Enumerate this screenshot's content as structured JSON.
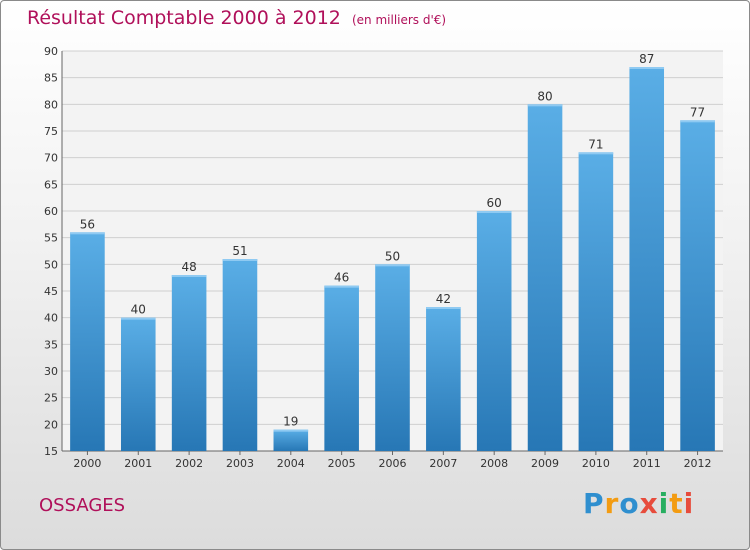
{
  "chart_data": {
    "type": "bar",
    "title": "Résultat Comptable 2000 à 2012",
    "subtitle": "(en milliers d'€)",
    "categories": [
      "2000",
      "2001",
      "2002",
      "2003",
      "2004",
      "2005",
      "2006",
      "2007",
      "2008",
      "2009",
      "2010",
      "2011",
      "2012"
    ],
    "values": [
      56,
      40,
      48,
      51,
      19,
      46,
      50,
      42,
      60,
      80,
      71,
      87,
      77
    ],
    "ylim": [
      15,
      90
    ],
    "yticks": [
      15,
      20,
      25,
      30,
      35,
      40,
      45,
      50,
      55,
      60,
      65,
      70,
      75,
      80,
      85,
      90
    ],
    "grid": true,
    "bar_color_top": "#5aaee6",
    "bar_color_bottom": "#2777b5"
  },
  "place": "OSSAGES",
  "logo": {
    "letters": [
      "P",
      "r",
      "o",
      "x",
      "i",
      "t",
      "i"
    ],
    "colors": [
      "#2f8fcf",
      "#f39c12",
      "#2f8fcf",
      "#e74c3c",
      "#27ae60",
      "#f39c12",
      "#e74c3c"
    ]
  },
  "colors": {
    "title": "#b0105a",
    "axis_text": "#333333"
  }
}
